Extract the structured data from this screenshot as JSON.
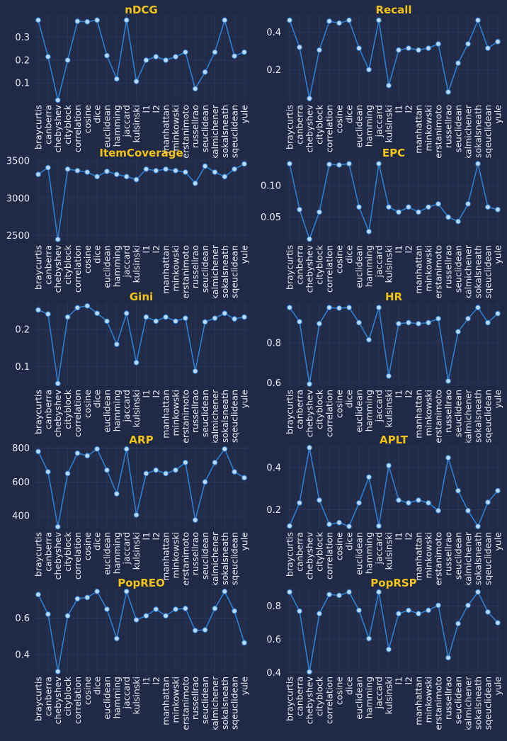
{
  "figure": {
    "background": "#202946",
    "panel_background": "#222b48",
    "grid_color": "#2d3760",
    "title_color": "#f2c417",
    "text_color": "#e8ecf5",
    "line_color": "#2f7fd1",
    "marker_fill": "#b9d9f5"
  },
  "chart_data": [
    {
      "type": "line",
      "title": "nDCG",
      "categories": [
        "braycurtis",
        "canberra",
        "chebyshev",
        "cityblock",
        "correlation",
        "cosine",
        "dice",
        "euclidean",
        "hamming",
        "jaccard",
        "kulsinski",
        "l1",
        "l2",
        "manhattan",
        "minkowski",
        "rogerstanimoto",
        "russellrao",
        "seuclidean",
        "sokalmichener",
        "sokalsneath",
        "sqeuclidean",
        "yule"
      ],
      "values": [
        0.375,
        0.215,
        0.025,
        0.2,
        0.37,
        0.368,
        0.375,
        0.22,
        0.118,
        0.375,
        0.107,
        0.2,
        0.215,
        0.2,
        0.215,
        0.235,
        0.075,
        0.148,
        0.235,
        0.375,
        0.218,
        0.235
      ],
      "ylim": [
        0.02,
        0.395
      ],
      "yticks": [
        0.1,
        0.2,
        0.3
      ],
      "ytick_labels": [
        "0.1",
        "0.2",
        "0.3"
      ]
    },
    {
      "type": "line",
      "title": "Recall",
      "categories": [
        "braycurtis",
        "canberra",
        "chebyshev",
        "cityblock",
        "correlation",
        "cosine",
        "dice",
        "euclidean",
        "hamming",
        "jaccard",
        "kulsinski",
        "l1",
        "l2",
        "manhattan",
        "minkowski",
        "rogerstanimoto",
        "russellrao",
        "seuclidean",
        "sokalmichener",
        "sokalsneath",
        "sqeuclidean",
        "yule"
      ],
      "values": [
        0.465,
        0.32,
        0.045,
        0.305,
        0.46,
        0.45,
        0.465,
        0.315,
        0.2,
        0.465,
        0.115,
        0.305,
        0.315,
        0.305,
        0.315,
        0.338,
        0.08,
        0.235,
        0.338,
        0.465,
        0.315,
        0.35
      ],
      "ylim": [
        0.03,
        0.49
      ],
      "yticks": [
        0.2,
        0.4
      ],
      "ytick_labels": [
        "0.2",
        "0.4"
      ]
    },
    {
      "type": "line",
      "title": "ItemCoverage",
      "categories": [
        "braycurtis",
        "canberra",
        "chebyshev",
        "cityblock",
        "correlation",
        "cosine",
        "dice",
        "euclidean",
        "hamming",
        "jaccard",
        "kulsinski",
        "l1",
        "l2",
        "manhattan",
        "minkowski",
        "rogerstanimoto",
        "russellrao",
        "seuclidean",
        "sokalmichener",
        "sokalsneath",
        "sqeuclidean",
        "yule"
      ],
      "values": [
        3320,
        3410,
        2450,
        3390,
        3370,
        3350,
        3290,
        3360,
        3320,
        3290,
        3250,
        3390,
        3370,
        3390,
        3370,
        3350,
        3200,
        3430,
        3350,
        3290,
        3390,
        3460
      ],
      "ylim": [
        2420,
        3530
      ],
      "yticks": [
        2500,
        3000,
        3500
      ],
      "ytick_labels": [
        "2500",
        "3000",
        "3500"
      ]
    },
    {
      "type": "line",
      "title": "EPC",
      "categories": [
        "braycurtis",
        "canberra",
        "chebyshev",
        "cityblock",
        "correlation",
        "cosine",
        "dice",
        "euclidean",
        "hamming",
        "jaccard",
        "kulsinski",
        "l1",
        "l2",
        "manhattan",
        "minkowski",
        "rogerstanimoto",
        "russellrao",
        "seuclidean",
        "sokalmichener",
        "sokalsneath",
        "sqeuclidean",
        "yule"
      ],
      "values": [
        0.135,
        0.062,
        0.015,
        0.058,
        0.134,
        0.133,
        0.135,
        0.066,
        0.027,
        0.135,
        0.066,
        0.058,
        0.066,
        0.058,
        0.066,
        0.071,
        0.05,
        0.043,
        0.071,
        0.135,
        0.066,
        0.062
      ],
      "ylim": [
        0.011,
        0.143
      ],
      "yticks": [
        0.05,
        0.1
      ],
      "ytick_labels": [
        "0.05",
        "0.10"
      ]
    },
    {
      "type": "line",
      "title": "Gini",
      "categories": [
        "braycurtis",
        "canberra",
        "chebyshev",
        "cityblock",
        "correlation",
        "cosine",
        "dice",
        "euclidean",
        "hamming",
        "jaccard",
        "kulsinski",
        "l1",
        "l2",
        "manhattan",
        "minkowski",
        "rogerstanimoto",
        "russellrao",
        "seuclidean",
        "sokalmichener",
        "sokalsneath",
        "sqeuclidean",
        "yule"
      ],
      "values": [
        0.252,
        0.241,
        0.055,
        0.233,
        0.258,
        0.263,
        0.243,
        0.222,
        0.16,
        0.243,
        0.111,
        0.233,
        0.222,
        0.233,
        0.222,
        0.23,
        0.088,
        0.22,
        0.23,
        0.243,
        0.228,
        0.233
      ],
      "ylim": [
        0.048,
        0.272
      ],
      "yticks": [
        0.1,
        0.2
      ],
      "ytick_labels": [
        "0.1",
        "0.2"
      ]
    },
    {
      "type": "line",
      "title": "HR",
      "categories": [
        "braycurtis",
        "canberra",
        "chebyshev",
        "cityblock",
        "correlation",
        "cosine",
        "dice",
        "euclidean",
        "hamming",
        "jaccard",
        "kulsinski",
        "l1",
        "l2",
        "manhattan",
        "minkowski",
        "rogerstanimoto",
        "russellrao",
        "seuclidean",
        "sokalmichener",
        "sokalsneath",
        "sqeuclidean",
        "yule"
      ],
      "values": [
        0.975,
        0.905,
        0.595,
        0.895,
        0.975,
        0.972,
        0.975,
        0.9,
        0.815,
        0.975,
        0.635,
        0.895,
        0.9,
        0.895,
        0.9,
        0.92,
        0.61,
        0.855,
        0.92,
        0.975,
        0.9,
        0.945
      ],
      "ylim": [
        0.585,
        1.0
      ],
      "yticks": [
        0.6,
        0.8
      ],
      "ytick_labels": [
        "0.6",
        "0.8"
      ]
    },
    {
      "type": "line",
      "title": "ARP",
      "categories": [
        "braycurtis",
        "canberra",
        "chebyshev",
        "cityblock",
        "correlation",
        "cosine",
        "dice",
        "euclidean",
        "hamming",
        "jaccard",
        "kulsinski",
        "l1",
        "l2",
        "manhattan",
        "minkowski",
        "rogerstanimoto",
        "russellrao",
        "seuclidean",
        "sokalmichener",
        "sokalsneath",
        "sqeuclidean",
        "yule"
      ],
      "values": [
        780,
        660,
        335,
        650,
        770,
        755,
        795,
        670,
        530,
        795,
        405,
        650,
        670,
        650,
        670,
        715,
        375,
        600,
        715,
        795,
        660,
        625
      ],
      "ylim": [
        325,
        815
      ],
      "yticks": [
        400,
        600,
        800
      ],
      "ytick_labels": [
        "400",
        "600",
        "800"
      ]
    },
    {
      "type": "line",
      "title": "APLT",
      "categories": [
        "braycurtis",
        "canberra",
        "chebyshev",
        "cityblock",
        "correlation",
        "cosine",
        "dice",
        "euclidean",
        "hamming",
        "jaccard",
        "kulsinski",
        "l1",
        "l2",
        "manhattan",
        "minkowski",
        "rogerstanimoto",
        "russellrao",
        "seuclidean",
        "sokalmichener",
        "sokalsneath",
        "sqeuclidean",
        "yule"
      ],
      "values": [
        0.122,
        0.232,
        0.495,
        0.245,
        0.13,
        0.138,
        0.12,
        0.232,
        0.355,
        0.122,
        0.41,
        0.245,
        0.232,
        0.245,
        0.232,
        0.195,
        0.447,
        0.29,
        0.195,
        0.12,
        0.235,
        0.29
      ],
      "ylim": [
        0.11,
        0.505
      ],
      "yticks": [
        0.2,
        0.4
      ],
      "ytick_labels": [
        "0.2",
        "0.4"
      ]
    },
    {
      "type": "line",
      "title": "PopREO",
      "categories": [
        "braycurtis",
        "canberra",
        "chebyshev",
        "cityblock",
        "correlation",
        "cosine",
        "dice",
        "euclidean",
        "hamming",
        "jaccard",
        "kulsinski",
        "l1",
        "l2",
        "manhattan",
        "minkowski",
        "rogerstanimoto",
        "russellrao",
        "seuclidean",
        "sokalmichener",
        "sokalsneath",
        "sqeuclidean",
        "yule"
      ],
      "values": [
        0.728,
        0.621,
        0.308,
        0.612,
        0.705,
        0.712,
        0.745,
        0.648,
        0.488,
        0.745,
        0.59,
        0.612,
        0.648,
        0.612,
        0.648,
        0.652,
        0.532,
        0.535,
        0.652,
        0.745,
        0.638,
        0.465
      ],
      "ylim": [
        0.3,
        0.76
      ],
      "yticks": [
        0.4,
        0.6
      ],
      "ytick_labels": [
        "0.4",
        "0.6"
      ]
    },
    {
      "type": "line",
      "title": "PopRSP",
      "categories": [
        "braycurtis",
        "canberra",
        "chebyshev",
        "cityblock",
        "correlation",
        "cosine",
        "dice",
        "euclidean",
        "hamming",
        "jaccard",
        "kulsinski",
        "l1",
        "l2",
        "manhattan",
        "minkowski",
        "rogerstanimoto",
        "russellrao",
        "seuclidean",
        "sokalmichener",
        "sokalsneath",
        "sqeuclidean",
        "yule"
      ],
      "values": [
        0.885,
        0.77,
        0.405,
        0.755,
        0.87,
        0.865,
        0.885,
        0.775,
        0.605,
        0.885,
        0.54,
        0.755,
        0.775,
        0.755,
        0.775,
        0.805,
        0.49,
        0.695,
        0.805,
        0.885,
        0.765,
        0.7
      ],
      "ylim": [
        0.398,
        0.905
      ],
      "yticks": [
        0.4,
        0.6,
        0.8
      ],
      "ytick_labels": [
        "0.4",
        "0.6",
        "0.8"
      ]
    }
  ]
}
